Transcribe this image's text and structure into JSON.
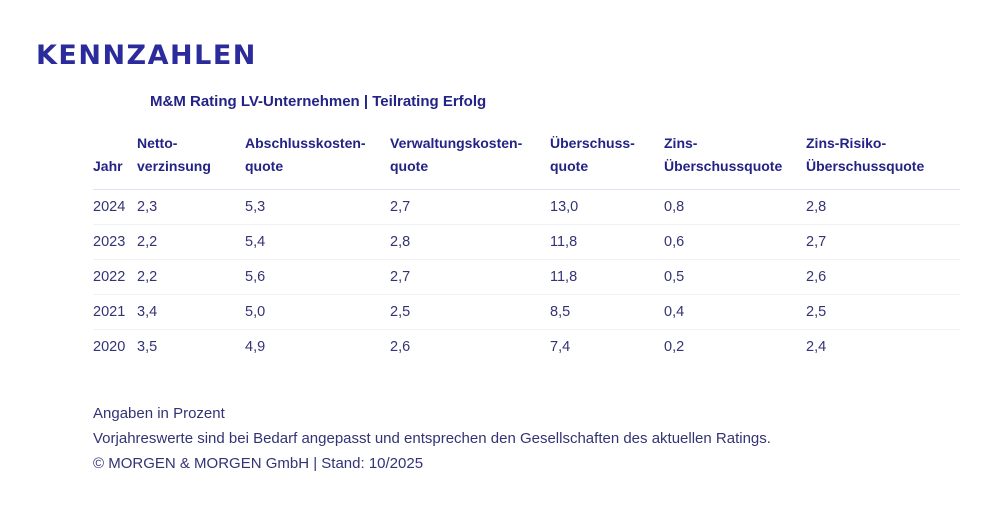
{
  "colors": {
    "brand_navy": "#2b2b9c",
    "heading_navy": "#232387",
    "body_navy": "#333375",
    "header_divider": "#dde4ee",
    "row_divider": "#eef1f5",
    "background": "#ffffff"
  },
  "header": {
    "title": "KENNZAHLEN",
    "subtitle": "M&M Rating LV-Unternehmen | Teilrating Erfolg"
  },
  "table": {
    "columns": [
      {
        "line1": "",
        "line2": "Jahr"
      },
      {
        "line1": "Netto-",
        "line2": "verzinsung"
      },
      {
        "line1": "Abschlusskosten-",
        "line2": "quote"
      },
      {
        "line1": "Verwaltungskosten-",
        "line2": "quote"
      },
      {
        "line1": "Überschuss-",
        "line2": "quote"
      },
      {
        "line1": "Zins-",
        "line2": "Überschussquote"
      },
      {
        "line1": "Zins-Risiko-",
        "line2": "Überschussquote"
      }
    ],
    "rows": [
      {
        "jahr": "2024",
        "values": [
          "2,3",
          "5,3",
          "2,7",
          "13,0",
          "0,8",
          "2,8"
        ]
      },
      {
        "jahr": "2023",
        "values": [
          "2,2",
          "5,4",
          "2,8",
          "11,8",
          "0,6",
          "2,7"
        ]
      },
      {
        "jahr": "2022",
        "values": [
          "2,2",
          "5,6",
          "2,7",
          "11,8",
          "0,5",
          "2,6"
        ]
      },
      {
        "jahr": "2021",
        "values": [
          "3,4",
          "5,0",
          "2,5",
          "8,5",
          "0,4",
          "2,5"
        ]
      },
      {
        "jahr": "2020",
        "values": [
          "3,5",
          "4,9",
          "2,6",
          "7,4",
          "0,2",
          "2,4"
        ]
      }
    ]
  },
  "footnotes": {
    "unit_note": "Angaben in Prozent",
    "adjustment_note": "Vorjahreswerte sind bei Bedarf angepasst und entsprechen den Gesellschaften des aktuellen Ratings.",
    "copyright": "© MORGEN & MORGEN GmbH | Stand: 10/2025"
  },
  "chart_data": {
    "type": "table",
    "title": "KENNZAHLEN",
    "subtitle": "M&M Rating LV-Unternehmen | Teilrating Erfolg",
    "unit": "Prozent",
    "columns": [
      "Jahr",
      "Netto-verzinsung",
      "Abschlusskostenquote",
      "Verwaltungskostenquote",
      "Überschussquote",
      "Zins-Überschussquote",
      "Zins-Risiko-Überschussquote"
    ],
    "rows": [
      [
        2024,
        2.3,
        5.3,
        2.7,
        13.0,
        0.8,
        2.8
      ],
      [
        2023,
        2.2,
        5.4,
        2.8,
        11.8,
        0.6,
        2.7
      ],
      [
        2022,
        2.2,
        5.6,
        2.7,
        11.8,
        0.5,
        2.6
      ],
      [
        2021,
        3.4,
        5.0,
        2.5,
        8.5,
        0.4,
        2.5
      ],
      [
        2020,
        3.5,
        4.9,
        2.6,
        7.4,
        0.2,
        2.4
      ]
    ],
    "notes": [
      "Angaben in Prozent",
      "Vorjahreswerte sind bei Bedarf angepasst und entsprechen den Gesellschaften des aktuellen Ratings.",
      "© MORGEN & MORGEN GmbH | Stand: 10/2025"
    ]
  }
}
